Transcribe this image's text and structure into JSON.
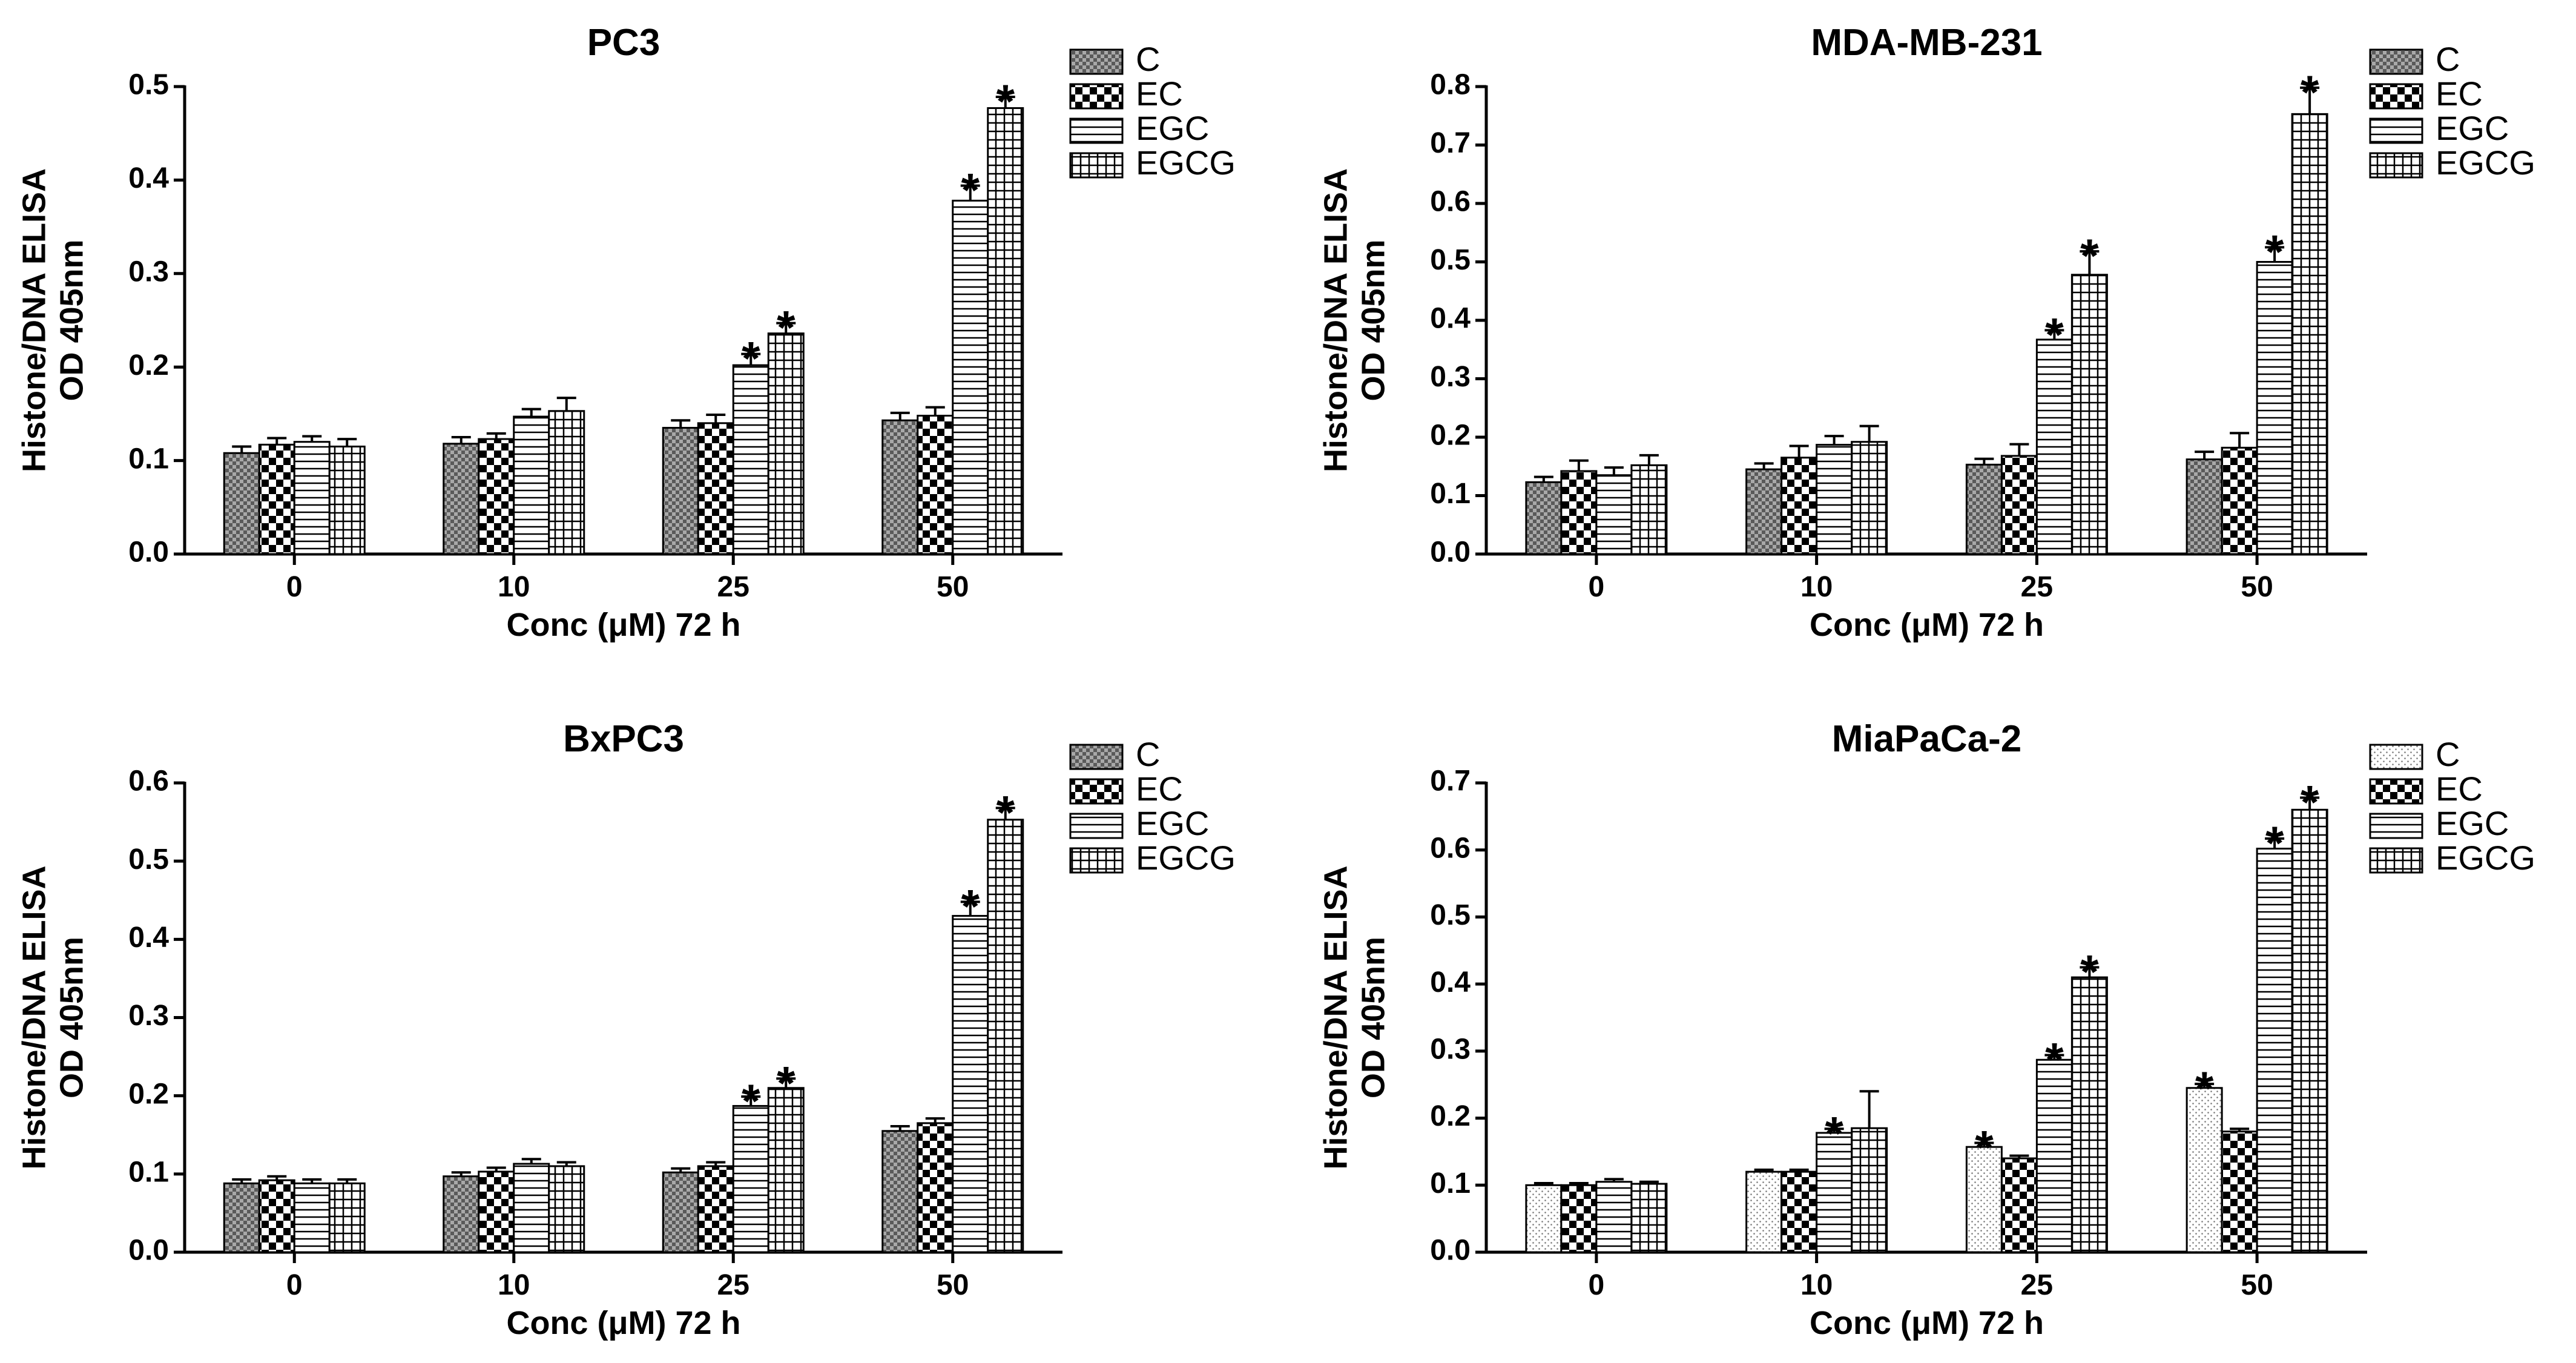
{
  "chart_data": [
    {
      "type": "bar",
      "title": "PC3",
      "xlabel": "Conc (μM) 72 h",
      "ylabel": "Histone/DNA ELISA",
      "ylabel2": "OD 405nm",
      "ylim": [
        0,
        0.5
      ],
      "yticks": [
        "0.0",
        "0.1",
        "0.2",
        "0.3",
        "0.4",
        "0.5"
      ],
      "categories": [
        "0",
        "10",
        "25",
        "50"
      ],
      "series": [
        {
          "name": "C",
          "values": [
            0.108,
            0.118,
            0.135,
            0.143
          ],
          "errors": [
            0.007,
            0.007,
            0.008,
            0.008
          ],
          "significant": [
            false,
            false,
            false,
            false
          ]
        },
        {
          "name": "EC",
          "values": [
            0.117,
            0.123,
            0.14,
            0.148
          ],
          "errors": [
            0.007,
            0.006,
            0.009,
            0.009
          ],
          "significant": [
            false,
            false,
            false,
            false
          ]
        },
        {
          "name": "EGC",
          "values": [
            0.12,
            0.147,
            0.202,
            0.378
          ],
          "errors": [
            0.006,
            0.008,
            0.012,
            0.016
          ],
          "significant": [
            false,
            false,
            true,
            true
          ]
        },
        {
          "name": "EGCG",
          "values": [
            0.115,
            0.153,
            0.236,
            0.477
          ],
          "errors": [
            0.008,
            0.014,
            0.011,
            0.012
          ],
          "significant": [
            false,
            false,
            true,
            true
          ]
        }
      ],
      "significance_marker": "*",
      "legend_position": "top-right"
    },
    {
      "type": "bar",
      "title": "MDA-MB-231",
      "xlabel": "Conc (μM) 72 h",
      "ylabel": "Histone/DNA ELISA",
      "ylabel2": "OD 405nm",
      "ylim": [
        0,
        0.8
      ],
      "yticks": [
        "0.0",
        "0.1",
        "0.2",
        "0.3",
        "0.4",
        "0.5",
        "0.6",
        "0.7",
        "0.8"
      ],
      "categories": [
        "0",
        "10",
        "25",
        "50"
      ],
      "series": [
        {
          "name": "C",
          "values": [
            0.123,
            0.145,
            0.153,
            0.162
          ],
          "errors": [
            0.009,
            0.01,
            0.01,
            0.013
          ],
          "significant": [
            false,
            false,
            false,
            false
          ]
        },
        {
          "name": "EC",
          "values": [
            0.142,
            0.165,
            0.168,
            0.182
          ],
          "errors": [
            0.018,
            0.02,
            0.02,
            0.025
          ],
          "significant": [
            false,
            false,
            false,
            false
          ]
        },
        {
          "name": "EGC",
          "values": [
            0.135,
            0.187,
            0.367,
            0.5
          ],
          "errors": [
            0.013,
            0.015,
            0.016,
            0.025
          ],
          "significant": [
            false,
            false,
            true,
            true
          ]
        },
        {
          "name": "EGCG",
          "values": [
            0.152,
            0.192,
            0.478,
            0.753
          ],
          "errors": [
            0.017,
            0.027,
            0.04,
            0.045
          ],
          "significant": [
            false,
            false,
            true,
            true
          ]
        }
      ],
      "significance_marker": "*",
      "legend_position": "top-right"
    },
    {
      "type": "bar",
      "title": "BxPC3",
      "xlabel": "Conc (μM) 72 h",
      "ylabel": "Histone/DNA ELISA",
      "ylabel2": "OD 405nm",
      "ylim": [
        0,
        0.6
      ],
      "yticks": [
        "0.0",
        "0.1",
        "0.2",
        "0.3",
        "0.4",
        "0.5",
        "0.6"
      ],
      "categories": [
        "0",
        "10",
        "25",
        "50"
      ],
      "series": [
        {
          "name": "C",
          "values": [
            0.088,
            0.097,
            0.102,
            0.155
          ],
          "errors": [
            0.005,
            0.005,
            0.005,
            0.006
          ],
          "significant": [
            false,
            false,
            false,
            false
          ]
        },
        {
          "name": "EC",
          "values": [
            0.092,
            0.103,
            0.11,
            0.165
          ],
          "errors": [
            0.005,
            0.005,
            0.005,
            0.006
          ],
          "significant": [
            false,
            false,
            false,
            false
          ]
        },
        {
          "name": "EGC",
          "values": [
            0.088,
            0.113,
            0.187,
            0.43
          ],
          "errors": [
            0.005,
            0.006,
            0.012,
            0.018
          ],
          "significant": [
            false,
            false,
            true,
            true
          ]
        },
        {
          "name": "EGCG",
          "values": [
            0.088,
            0.11,
            0.21,
            0.553
          ],
          "errors": [
            0.005,
            0.005,
            0.012,
            0.015
          ],
          "significant": [
            false,
            false,
            true,
            true
          ]
        }
      ],
      "significance_marker": "*",
      "legend_position": "top-right"
    },
    {
      "type": "bar",
      "title": "MiaPaCa-2",
      "xlabel": "Conc (μM) 72 h",
      "ylabel": "Histone/DNA ELISA",
      "ylabel2": "OD 405nm",
      "ylim": [
        0,
        0.7
      ],
      "yticks": [
        "0.0",
        "0.1",
        "0.2",
        "0.3",
        "0.4",
        "0.5",
        "0.6",
        "0.7"
      ],
      "categories": [
        "0",
        "10",
        "25",
        "50"
      ],
      "series": [
        {
          "name": "C",
          "values": [
            0.1,
            0.12,
            0.157,
            0.245
          ],
          "errors": [
            0.003,
            0.003,
            0.006,
            0.006
          ],
          "significant": [
            false,
            false,
            true,
            true
          ]
        },
        {
          "name": "EC",
          "values": [
            0.1,
            0.12,
            0.14,
            0.18
          ],
          "errors": [
            0.003,
            0.003,
            0.004,
            0.004
          ],
          "significant": [
            false,
            false,
            false,
            false
          ]
        },
        {
          "name": "EGC",
          "values": [
            0.105,
            0.178,
            0.287,
            0.602
          ],
          "errors": [
            0.004,
            0.006,
            0.007,
            0.015
          ],
          "significant": [
            false,
            true,
            true,
            true
          ]
        },
        {
          "name": "EGCG",
          "values": [
            0.102,
            0.185,
            0.41,
            0.66
          ],
          "errors": [
            0.003,
            0.055,
            0.015,
            0.018
          ],
          "significant": [
            false,
            false,
            true,
            true
          ]
        }
      ],
      "significance_marker": "*",
      "legend_position": "top-right"
    }
  ]
}
